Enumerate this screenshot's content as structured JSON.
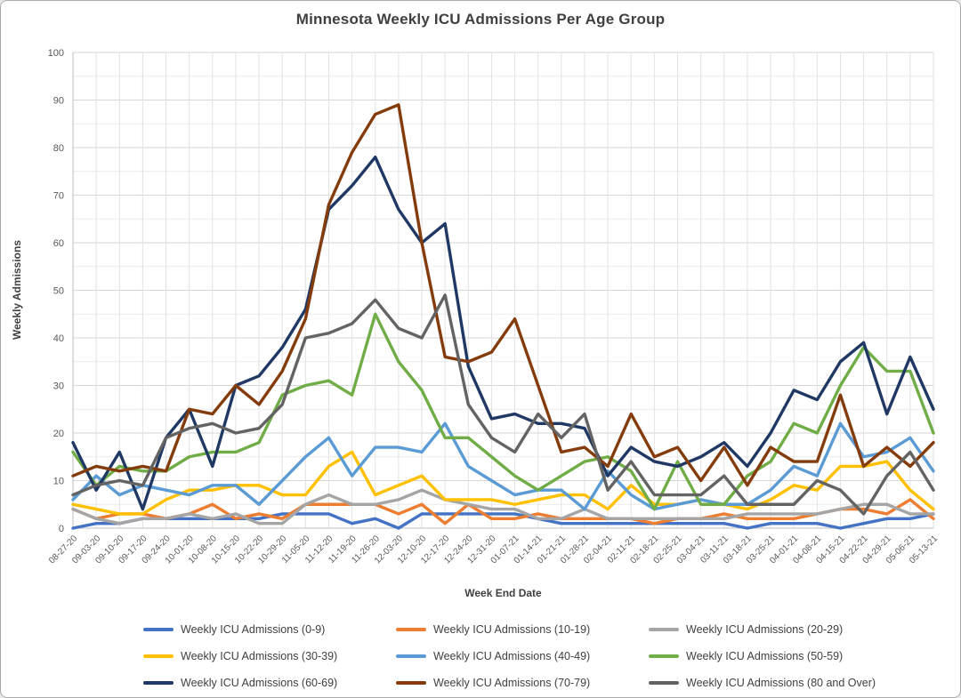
{
  "window": {
    "background": "#ffffff",
    "border_color": "#ababab"
  },
  "title": "Minnesota Weekly ICU Admissions Per Age Group",
  "axes": {
    "x_title": "Week End Date",
    "y_title": "Weekly Admissions",
    "y_tick_labels": [
      "0",
      "10",
      "20",
      "30",
      "40",
      "50",
      "60",
      "70",
      "80",
      "90",
      "100"
    ]
  },
  "chart_data": {
    "type": "line",
    "title": "Minnesota Weekly ICU Admissions Per Age Group",
    "xlabel": "Week End Date",
    "ylabel": "Weekly Admissions",
    "ylim": [
      0,
      100
    ],
    "y_tick_step": 10,
    "minor_grid_step": 5,
    "grid": true,
    "legend_position": "bottom",
    "categories": [
      "08-27-20",
      "09-03-20",
      "09-10-20",
      "09-17-20",
      "09-24-20",
      "10-01-20",
      "10-08-20",
      "10-15-20",
      "10-22-20",
      "10-29-20",
      "11-05-20",
      "11-12-20",
      "11-19-20",
      "11-26-20",
      "12-03-20",
      "12-10-20",
      "12-17-20",
      "12-24-20",
      "12-31-20",
      "01-07-21",
      "01-14-21",
      "01-21-21",
      "01-28-21",
      "02-04-21",
      "02-11-21",
      "02-18-21",
      "02-25-21",
      "03-04-21",
      "03-11-21",
      "03-18-21",
      "03-25-21",
      "04-01-21",
      "04-08-21",
      "04-15-21",
      "04-22-21",
      "04-29-21",
      "05-06-21",
      "05-13-21"
    ],
    "series": [
      {
        "name": "Weekly ICU Admissions (0-9)",
        "color": "#4472C4",
        "values": [
          0,
          1,
          1,
          2,
          2,
          2,
          2,
          2,
          2,
          3,
          3,
          3,
          1,
          2,
          0,
          3,
          3,
          3,
          3,
          3,
          2,
          1,
          1,
          1,
          1,
          1,
          1,
          1,
          1,
          0,
          1,
          1,
          1,
          0,
          1,
          2,
          2,
          3
        ]
      },
      {
        "name": "Weekly ICU Admissions (10-19)",
        "color": "#ED7D31",
        "values": [
          4,
          2,
          3,
          3,
          2,
          3,
          5,
          2,
          3,
          2,
          5,
          5,
          5,
          5,
          3,
          5,
          1,
          5,
          2,
          2,
          3,
          2,
          2,
          2,
          2,
          1,
          2,
          2,
          3,
          2,
          2,
          2,
          3,
          4,
          4,
          3,
          6,
          2
        ]
      },
      {
        "name": "Weekly ICU Admissions (20-29)",
        "color": "#A5A5A5",
        "values": [
          4,
          2,
          1,
          2,
          2,
          3,
          2,
          3,
          1,
          1,
          5,
          7,
          5,
          5,
          6,
          8,
          6,
          5,
          4,
          4,
          2,
          2,
          4,
          2,
          2,
          2,
          2,
          2,
          2,
          3,
          3,
          3,
          3,
          4,
          5,
          5,
          3,
          3
        ]
      },
      {
        "name": "Weekly ICU Admissions (30-39)",
        "color": "#FFC000",
        "values": [
          5,
          4,
          3,
          3,
          6,
          8,
          8,
          9,
          9,
          7,
          7,
          13,
          16,
          7,
          9,
          11,
          6,
          6,
          6,
          5,
          6,
          7,
          7,
          4,
          9,
          5,
          5,
          6,
          5,
          4,
          6,
          9,
          8,
          13,
          13,
          14,
          8,
          4
        ]
      },
      {
        "name": "Weekly ICU Admissions (40-49)",
        "color": "#5B9BD5",
        "values": [
          6,
          11,
          7,
          9,
          8,
          7,
          9,
          9,
          5,
          10,
          15,
          19,
          11,
          17,
          17,
          16,
          22,
          13,
          10,
          7,
          8,
          8,
          4,
          12,
          7,
          4,
          5,
          6,
          5,
          5,
          8,
          13,
          11,
          22,
          15,
          16,
          19,
          12
        ]
      },
      {
        "name": "Weekly ICU Admissions (50-59)",
        "color": "#70AD47",
        "values": [
          16,
          9,
          13,
          12,
          12,
          15,
          16,
          16,
          18,
          28,
          30,
          31,
          28,
          45,
          35,
          29,
          19,
          19,
          15,
          11,
          8,
          11,
          14,
          15,
          12,
          4,
          14,
          5,
          5,
          11,
          14,
          22,
          20,
          30,
          38,
          33,
          33,
          20
        ]
      },
      {
        "name": "Weekly ICU Admissions (60-69)",
        "color": "#1F3864",
        "values": [
          18,
          8,
          16,
          4,
          19,
          25,
          13,
          30,
          32,
          38,
          46,
          67,
          72,
          78,
          67,
          60,
          64,
          34,
          23,
          24,
          22,
          22,
          21,
          11,
          17,
          14,
          13,
          15,
          18,
          13,
          20,
          29,
          27,
          35,
          39,
          24,
          36,
          25
        ]
      },
      {
        "name": "Weekly ICU Admissions (70-79)",
        "color": "#843C0C",
        "values": [
          11,
          13,
          12,
          13,
          12,
          25,
          24,
          30,
          26,
          33,
          44,
          68,
          79,
          87,
          89,
          60,
          36,
          35,
          37,
          44,
          30,
          16,
          17,
          13,
          24,
          15,
          17,
          10,
          17,
          9,
          17,
          14,
          14,
          28,
          13,
          17,
          13,
          18
        ]
      },
      {
        "name": "Weekly ICU Admissions (80 and Over)",
        "color": "#636363",
        "values": [
          7,
          9,
          10,
          9,
          19,
          21,
          22,
          20,
          21,
          26,
          40,
          41,
          43,
          48,
          42,
          40,
          49,
          26,
          19,
          16,
          24,
          19,
          24,
          8,
          14,
          7,
          7,
          7,
          11,
          5,
          5,
          5,
          10,
          8,
          3,
          11,
          16,
          8
        ]
      }
    ]
  },
  "style": {
    "major_grid_color": "#d6d6d6",
    "minor_grid_color": "#ebebeb",
    "vertical_grid_color": "#e2e2e2",
    "axis_line_color": "#bfbfbf",
    "tick_label_color": "#595959",
    "line_width": 3.4
  }
}
